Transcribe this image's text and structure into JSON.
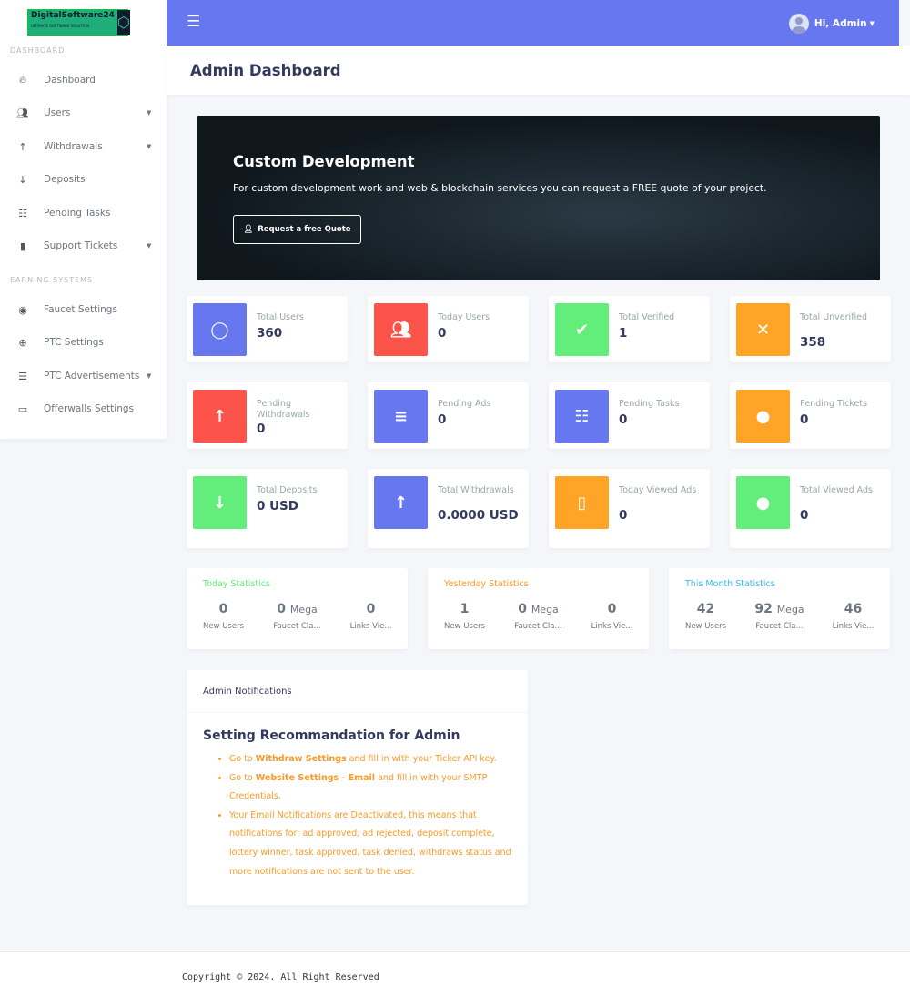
{
  "brand": {
    "name": "DigitalSoftware24",
    "tagline": "ULTIMATE SOFTWARE SOLUTION"
  },
  "sidebar": {
    "sections": [
      {
        "title": "DASHBOARD",
        "items": [
          {
            "label": "Dashboard",
            "icon": "fire-icon",
            "dropdown": false
          },
          {
            "label": "Users",
            "icon": "users-icon",
            "dropdown": true
          },
          {
            "label": "Withdrawals",
            "icon": "arrow-up-icon",
            "dropdown": true
          },
          {
            "label": "Deposits",
            "icon": "arrow-down-icon",
            "dropdown": false
          },
          {
            "label": "Pending Tasks",
            "icon": "tasks-icon",
            "dropdown": false
          },
          {
            "label": "Support Tickets",
            "icon": "clipboard-icon",
            "dropdown": true
          }
        ]
      },
      {
        "title": "EARNING SYSTEMS",
        "items": [
          {
            "label": "Faucet Settings",
            "icon": "faucet-icon",
            "dropdown": false
          },
          {
            "label": "PTC Settings",
            "icon": "globe-icon",
            "dropdown": false
          },
          {
            "label": "PTC Advertisements",
            "icon": "bars-icon",
            "dropdown": true
          },
          {
            "label": "Offerwalls Settings",
            "icon": "laptop-icon",
            "dropdown": false
          }
        ]
      }
    ]
  },
  "topbar": {
    "greeting": "Hi, Admin",
    "accent": "#6777ef"
  },
  "header": {
    "title": "Admin Dashboard"
  },
  "banner": {
    "title": "Custom Development",
    "text": "For custom development work and web & blockchain services you can request a FREE quote of your project.",
    "button": "Request a free Quote"
  },
  "cards": [
    {
      "title": "Total Users",
      "value": "360",
      "color": "#6777ef",
      "icon": "user-icon"
    },
    {
      "title": "Today Users",
      "value": "0",
      "color": "#fc544b",
      "icon": "users-icon"
    },
    {
      "title": "Total Verified",
      "value": "1",
      "color": "#63ed7a",
      "icon": "user-check-icon"
    },
    {
      "title": "Total Unverified",
      "value": "358",
      "color": "#ffa426",
      "icon": "times-icon"
    },
    {
      "title": "Pending Withdrawals",
      "value": "0",
      "color": "#fc544b",
      "icon": "arrow-up-icon"
    },
    {
      "title": "Pending Ads",
      "value": "0",
      "color": "#6777ef",
      "icon": "align-icon"
    },
    {
      "title": "Pending Tasks",
      "value": "0",
      "color": "#6777ef",
      "icon": "tasks-icon"
    },
    {
      "title": "Pending Tickets",
      "value": "0",
      "color": "#ffa426",
      "icon": "comment-icon"
    },
    {
      "title": "Total Deposits",
      "value": "0 USD",
      "color": "#63ed7a",
      "icon": "arrow-down-icon"
    },
    {
      "title": "Total Withdrawals",
      "value": "0.0000 USD",
      "color": "#6777ef",
      "icon": "arrow-up-icon"
    },
    {
      "title": "Today Viewed Ads",
      "value": "0",
      "color": "#ffa426",
      "icon": "file-icon"
    },
    {
      "title": "Total Viewed Ads",
      "value": "0",
      "color": "#63ed7a",
      "icon": "circle-icon"
    }
  ],
  "stats": [
    {
      "title": "Today Statistics",
      "color": "#63ed7a",
      "new_users": "0",
      "faucet": "0",
      "faucet_unit": "Mega",
      "links": "0"
    },
    {
      "title": "Yesterday Statistics",
      "color": "#fd9a26",
      "new_users": "1",
      "faucet": "0",
      "faucet_unit": "Mega",
      "links": "0"
    },
    {
      "title": "This Month Statistics",
      "color": "#3abaf4",
      "new_users": "42",
      "faucet": "92",
      "faucet_unit": "Mega",
      "links": "46"
    }
  ],
  "stat_labels": {
    "new_users": "New Users",
    "faucet": "Faucet Cla...",
    "links": "Links Vie..."
  },
  "notifications": {
    "header": "Admin Notifications",
    "title": "Setting Recommandation for Admin",
    "items": [
      {
        "pre": "Go to ",
        "bold": "Withdraw Settings",
        "post": " and fill in with your Ticker API key."
      },
      {
        "pre": "Go to ",
        "bold": "Website Settings - Email",
        "post": " and fill in with your SMTP Credentials."
      },
      {
        "pre": "Your Email Notifications are Deactivated, this means that notifications for: ad approved, ad rejected, deposit complete, lottery winner, task approved, task denied, withdraws status and more notifications are not sent to the user.",
        "bold": "",
        "post": ""
      }
    ]
  },
  "footer": {
    "text": "Copyright © 2024. All Right Reserved"
  }
}
